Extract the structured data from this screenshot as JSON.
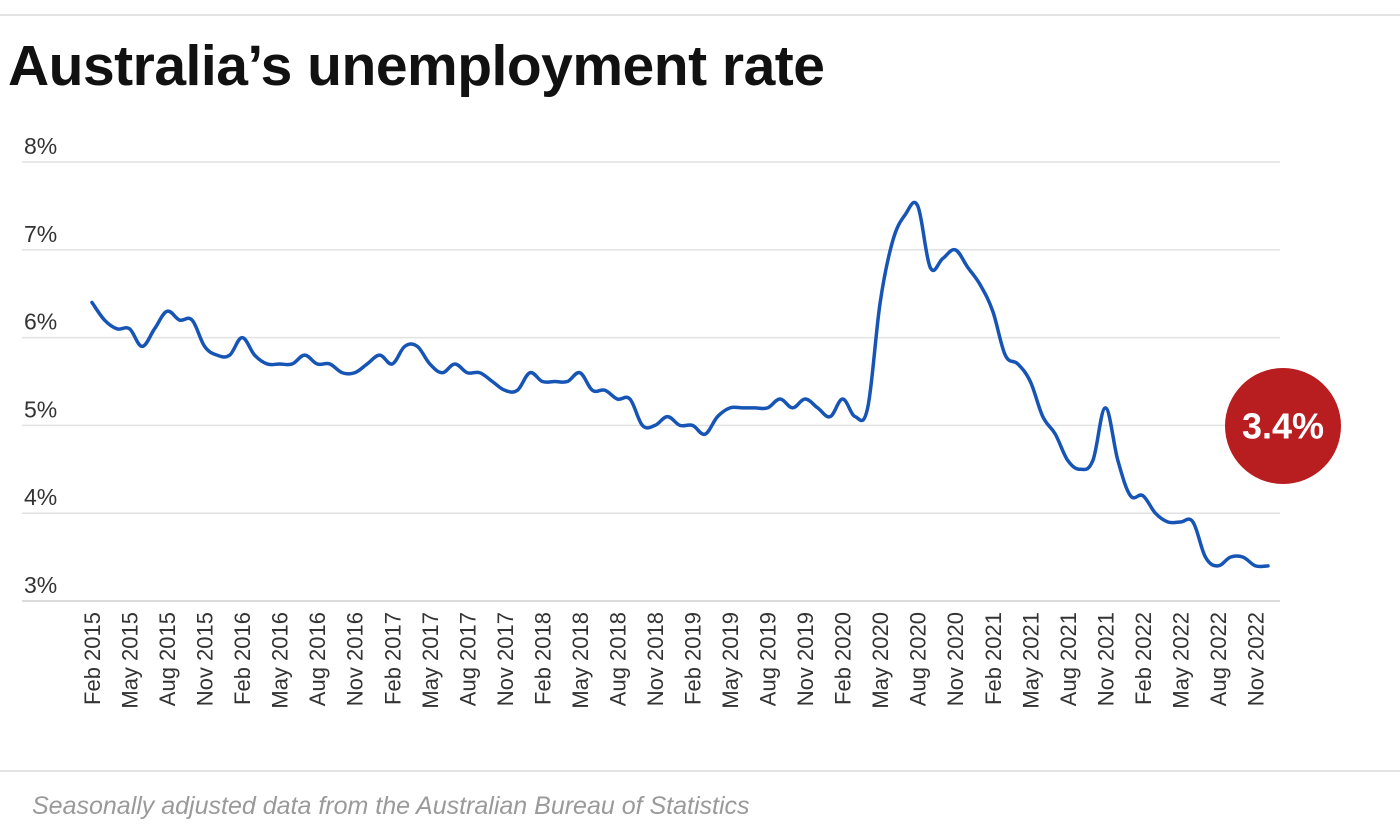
{
  "title": "Australia’s unemployment rate",
  "caption": "Seasonally adjusted data from the Australian Bureau of Statistics",
  "colors": {
    "line": "#1655b5",
    "badge": "#b81d1f",
    "grid": "#e2e2e2",
    "text": "#333333"
  },
  "chart_data": {
    "type": "line",
    "title": "Australia’s unemployment rate",
    "ylim": [
      3,
      8
    ],
    "yticks": [
      3,
      4,
      5,
      6,
      7,
      8
    ],
    "ytick_labels": [
      "3%",
      "4%",
      "5%",
      "6%",
      "7%",
      "8%"
    ],
    "x_start": "Feb 2015",
    "xtick_labels": [
      "Feb 2015",
      "May 2015",
      "Aug 2015",
      "Nov 2015",
      "Feb 2016",
      "May 2016",
      "Aug 2016",
      "Nov 2016",
      "Feb 2017",
      "May 2017",
      "Aug 2017",
      "Nov 2017",
      "Feb 2018",
      "May 2018",
      "Aug 2018",
      "Nov 2018",
      "Feb 2019",
      "May 2019",
      "Aug 2019",
      "Nov 2019",
      "Feb 2020",
      "May 2020",
      "Aug 2020",
      "Nov 2020",
      "Feb 2021",
      "May 2021",
      "Aug 2021",
      "Nov 2021",
      "Feb 2022",
      "May 2022",
      "Aug 2022",
      "Nov 2022"
    ],
    "grid": true,
    "legend": "none",
    "series": [
      {
        "values": [
          6.4,
          6.2,
          6.1,
          6.1,
          5.9,
          6.1,
          6.3,
          6.2,
          6.2,
          5.9,
          5.8,
          5.8,
          6.0,
          5.8,
          5.7,
          5.7,
          5.7,
          5.8,
          5.7,
          5.7,
          5.6,
          5.6,
          5.7,
          5.8,
          5.7,
          5.9,
          5.9,
          5.7,
          5.6,
          5.7,
          5.6,
          5.6,
          5.5,
          5.4,
          5.4,
          5.6,
          5.5,
          5.5,
          5.5,
          5.6,
          5.4,
          5.4,
          5.3,
          5.3,
          5.0,
          5.0,
          5.1,
          5.0,
          5.0,
          4.9,
          5.1,
          5.2,
          5.2,
          5.2,
          5.2,
          5.3,
          5.2,
          5.3,
          5.2,
          5.1,
          5.3,
          5.1,
          5.2,
          6.4,
          7.1,
          7.4,
          7.5,
          6.8,
          6.9,
          7.0,
          6.8,
          6.6,
          6.3,
          5.8,
          5.7,
          5.5,
          5.1,
          4.9,
          4.6,
          4.5,
          4.6,
          5.2,
          4.6,
          4.2,
          4.2,
          4.0,
          3.9,
          3.9,
          3.9,
          3.5,
          3.4,
          3.5,
          3.5,
          3.4,
          3.4
        ]
      }
    ],
    "callout": {
      "label": "3.4%",
      "value": 3.4
    }
  }
}
